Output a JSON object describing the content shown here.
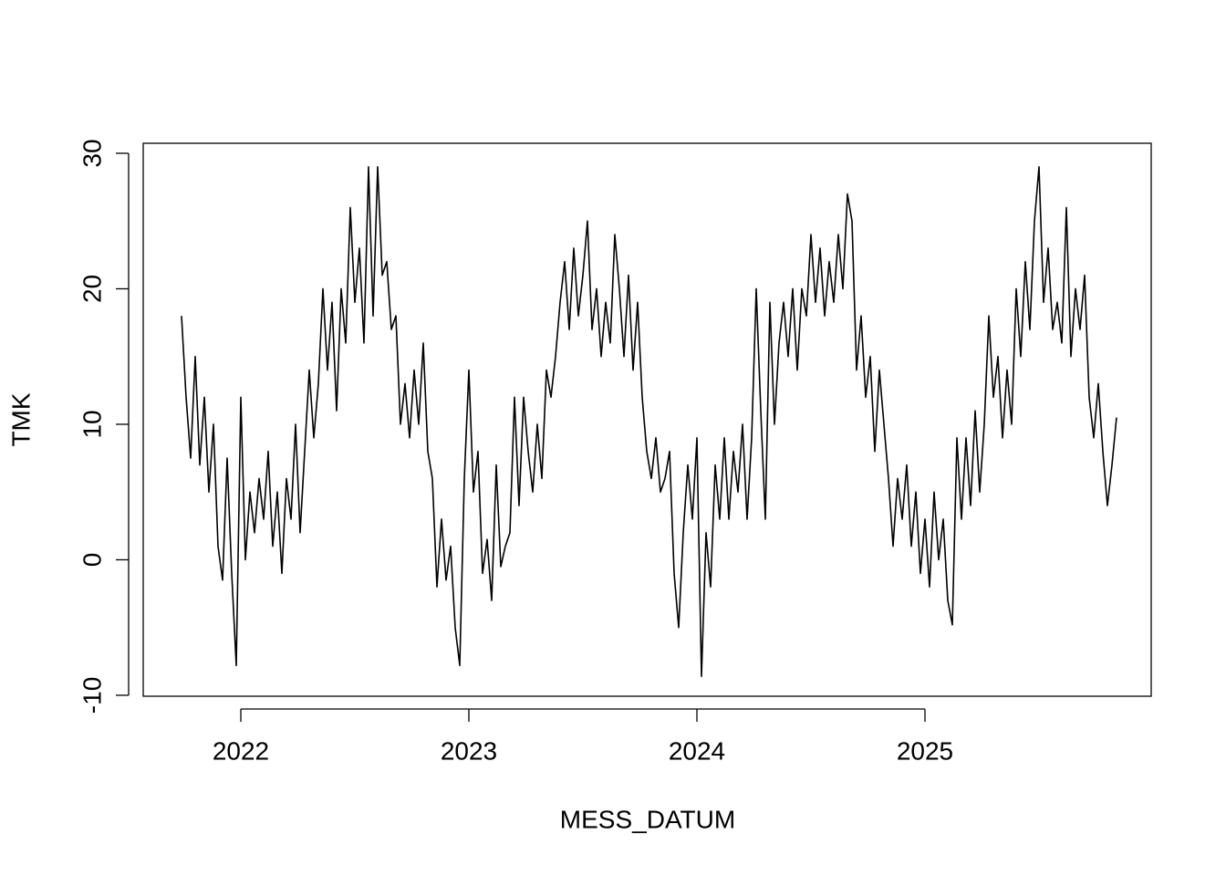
{
  "chart_data": {
    "type": "line",
    "x_label": "MESS_DATUM",
    "y_label": "TMK",
    "color": "#000000",
    "xlim": [
      2021.572,
      2025.992
    ],
    "xticks": [
      2022,
      2023,
      2024,
      2025
    ],
    "ylim": [
      -10.07,
      30.74
    ],
    "yticks": [
      -10,
      0,
      10,
      20,
      30
    ],
    "x": [
      2021.74,
      2021.76,
      2021.78,
      2021.8,
      2021.82,
      2021.84,
      2021.86,
      2021.88,
      2021.9,
      2021.92,
      2021.94,
      2021.96,
      2021.98,
      2022,
      2022.02,
      2022.04,
      2022.06,
      2022.08,
      2022.1,
      2022.12,
      2022.14,
      2022.16,
      2022.18,
      2022.2,
      2022.22,
      2022.24,
      2022.26,
      2022.28,
      2022.3,
      2022.32,
      2022.34,
      2022.36,
      2022.38,
      2022.4,
      2022.42,
      2022.44,
      2022.46,
      2022.48,
      2022.5,
      2022.52,
      2022.54,
      2022.56,
      2022.58,
      2022.6,
      2022.62,
      2022.64,
      2022.66,
      2022.68,
      2022.7,
      2022.72,
      2022.74,
      2022.76,
      2022.78,
      2022.8,
      2022.82,
      2022.84,
      2022.86,
      2022.88,
      2022.9,
      2022.92,
      2022.94,
      2022.96,
      2022.98,
      2023,
      2023.02,
      2023.04,
      2023.06,
      2023.08,
      2023.1,
      2023.12,
      2023.14,
      2023.16,
      2023.18,
      2023.2,
      2023.22,
      2023.24,
      2023.26,
      2023.28,
      2023.3,
      2023.32,
      2023.34,
      2023.36,
      2023.38,
      2023.4,
      2023.42,
      2023.44,
      2023.46,
      2023.48,
      2023.5,
      2023.52,
      2023.54,
      2023.56,
      2023.58,
      2023.6,
      2023.62,
      2023.64,
      2023.66,
      2023.68,
      2023.7,
      2023.72,
      2023.74,
      2023.76,
      2023.78,
      2023.8,
      2023.82,
      2023.84,
      2023.86,
      2023.88,
      2023.9,
      2023.92,
      2023.94,
      2023.96,
      2023.98,
      2024,
      2024.02,
      2024.04,
      2024.06,
      2024.08,
      2024.1,
      2024.12,
      2024.14,
      2024.16,
      2024.18,
      2024.2,
      2024.22,
      2024.24,
      2024.26,
      2024.28,
      2024.3,
      2024.32,
      2024.34,
      2024.36,
      2024.38,
      2024.4,
      2024.42,
      2024.44,
      2024.46,
      2024.48,
      2024.5,
      2024.52,
      2024.54,
      2024.56,
      2024.58,
      2024.6,
      2024.62,
      2024.64,
      2024.66,
      2024.68,
      2024.7,
      2024.72,
      2024.74,
      2024.76,
      2024.78,
      2024.8,
      2024.82,
      2024.84,
      2024.86,
      2024.88,
      2024.9,
      2024.92,
      2024.94,
      2024.96,
      2024.98,
      2025,
      2025.02,
      2025.04,
      2025.06,
      2025.08,
      2025.1,
      2025.12,
      2025.14,
      2025.16,
      2025.18,
      2025.2,
      2025.22,
      2025.24,
      2025.26,
      2025.28,
      2025.3,
      2025.32,
      2025.34,
      2025.36,
      2025.38,
      2025.4,
      2025.42,
      2025.44,
      2025.46,
      2025.48,
      2025.5,
      2025.52,
      2025.54,
      2025.56,
      2025.58,
      2025.6,
      2025.62,
      2025.64,
      2025.66,
      2025.68,
      2025.7,
      2025.72,
      2025.74,
      2025.76,
      2025.78,
      2025.8,
      2025.82,
      2025.84
    ],
    "values": [
      18,
      12,
      7.5,
      15,
      7,
      12,
      5,
      10,
      1,
      -1.5,
      7.5,
      -1,
      -7.8,
      12,
      0,
      5,
      2,
      6,
      3,
      8,
      1,
      5,
      -1,
      6,
      3,
      10,
      2,
      8,
      14,
      9,
      13,
      20,
      14,
      19,
      11,
      20,
      16,
      26,
      19,
      23,
      16,
      29,
      18,
      29,
      21,
      22,
      17,
      18,
      10,
      13,
      9,
      14,
      10,
      16,
      8,
      6,
      -2,
      3,
      -1.5,
      1,
      -5,
      -7.8,
      6,
      14,
      5,
      8,
      -1,
      1.5,
      -3,
      7,
      -0.5,
      1,
      2,
      12,
      4,
      12,
      8,
      5,
      10,
      6,
      14,
      12,
      15,
      19,
      22,
      17,
      23,
      18,
      21,
      25,
      17,
      20,
      15,
      19,
      16,
      24,
      20,
      15,
      21,
      14,
      19,
      12,
      8,
      6,
      9,
      5,
      6,
      8,
      -1,
      -5,
      2,
      7,
      3,
      9,
      -8.6,
      2,
      -2,
      7,
      3,
      9,
      3,
      8,
      5,
      10,
      3,
      9,
      20,
      11,
      3,
      19,
      10,
      16,
      19,
      15,
      20,
      14,
      20,
      18,
      24,
      19,
      23,
      18,
      22,
      19,
      24,
      20,
      27,
      25,
      14,
      18,
      12,
      15,
      8,
      14,
      10,
      6,
      1,
      6,
      3,
      7,
      1,
      5,
      -1,
      3,
      -2,
      5,
      0,
      3,
      -3,
      -4.8,
      9,
      3,
      9,
      4,
      11,
      5,
      10,
      18,
      12,
      15,
      9,
      14,
      10,
      20,
      15,
      22,
      17,
      25,
      29,
      19,
      23,
      17,
      19,
      16,
      26,
      15,
      20,
      17,
      21,
      12,
      9,
      13,
      8,
      4,
      7,
      10.5
    ]
  }
}
